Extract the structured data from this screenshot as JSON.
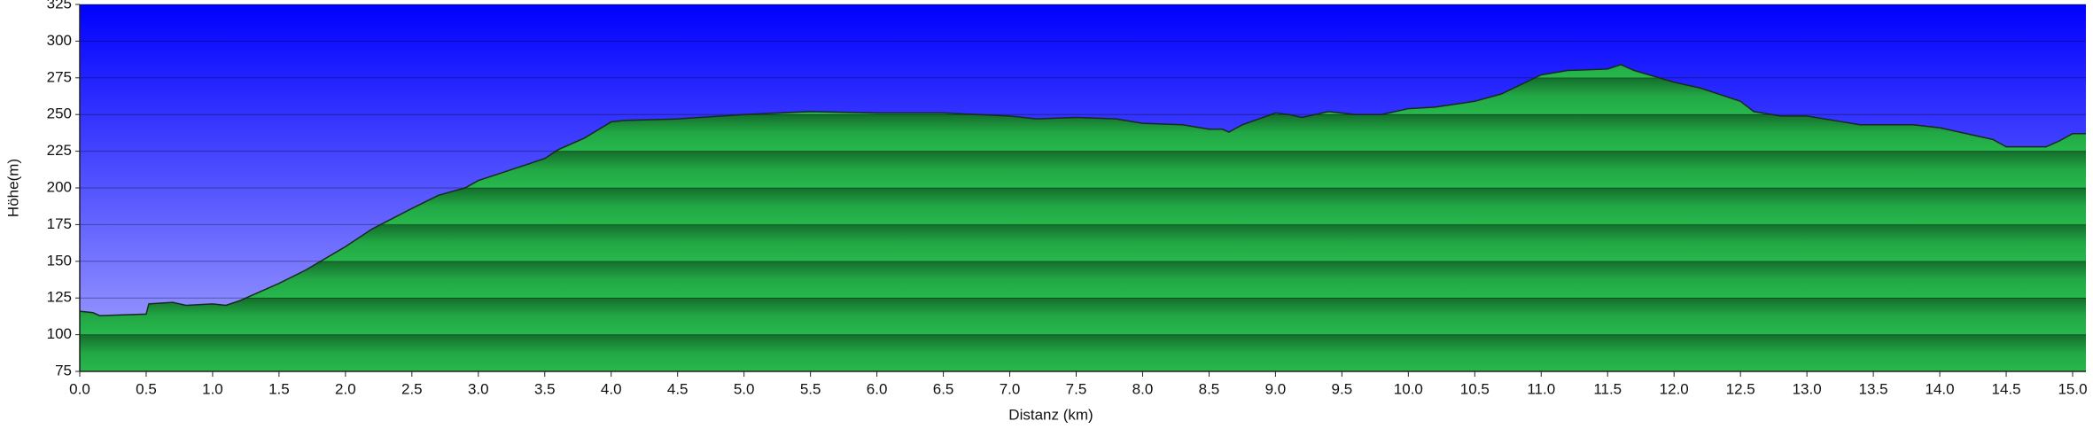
{
  "chart_data": {
    "type": "area",
    "x_label": "Distanz   (km)",
    "y_label": "Höhe(m)",
    "color": "#22a845",
    "line_color": "#1a2a1a",
    "grid": true,
    "xlim": [
      0,
      15.1
    ],
    "ylim": [
      75,
      325
    ],
    "xticks": [
      {
        "value": 0,
        "label": "0.0"
      },
      0.5,
      {
        "value": 1,
        "label": "1.0"
      },
      1.5,
      {
        "value": 2,
        "label": "2.0"
      },
      2.5,
      {
        "value": 3,
        "label": "3.0"
      },
      3.5,
      {
        "value": 4,
        "label": "4.0"
      },
      4.5,
      {
        "value": 5,
        "label": "5.0"
      },
      5.5,
      {
        "value": 6,
        "label": "6.0"
      },
      6.5,
      {
        "value": 7,
        "label": "7.0"
      },
      7.5,
      {
        "value": 8,
        "label": "8.0"
      },
      8.5,
      {
        "value": 9,
        "label": "9.0"
      },
      9.5,
      {
        "value": 10,
        "label": "10.0"
      },
      10.5,
      {
        "value": 11,
        "label": "11.0"
      },
      11.5,
      {
        "value": 12,
        "label": "12.0"
      },
      12.5,
      {
        "value": 13,
        "label": "13.0"
      },
      13.5,
      {
        "value": 14,
        "label": "14.0"
      },
      14.5,
      {
        "value": 15,
        "label": "15.0"
      }
    ],
    "yticks": [
      75,
      100,
      125,
      150,
      175,
      200,
      225,
      250,
      275,
      300,
      325
    ],
    "x": [
      0,
      0.1,
      0.15,
      0.5,
      0.52,
      0.7,
      0.8,
      1.0,
      1.1,
      1.2,
      1.5,
      1.7,
      2.0,
      2.2,
      2.5,
      2.7,
      2.9,
      3.0,
      3.2,
      3.5,
      3.6,
      3.8,
      4.0,
      4.1,
      4.5,
      5.0,
      5.5,
      6.0,
      6.5,
      7.0,
      7.2,
      7.5,
      7.8,
      8.0,
      8.3,
      8.5,
      8.6,
      8.65,
      8.75,
      9.0,
      9.1,
      9.2,
      9.4,
      9.6,
      9.8,
      10.0,
      10.2,
      10.5,
      10.7,
      11.0,
      11.2,
      11.5,
      11.6,
      11.7,
      12.0,
      12.2,
      12.5,
      12.6,
      12.8,
      13.0,
      13.2,
      13.4,
      13.6,
      13.8,
      14.0,
      14.2,
      14.4,
      14.5,
      14.8,
      14.9,
      15.0,
      15.1
    ],
    "values": [
      116,
      115,
      113,
      114,
      121,
      122,
      120,
      121,
      120,
      123,
      135,
      144,
      160,
      172,
      186,
      195,
      200,
      205,
      211,
      220,
      226,
      234,
      245,
      246,
      247,
      250,
      252,
      251,
      251,
      249,
      247,
      248,
      247,
      244,
      243,
      240,
      240,
      238,
      243,
      251,
      250,
      248,
      252,
      250,
      250,
      254,
      255,
      259,
      264,
      277,
      280,
      281,
      284,
      280,
      272,
      268,
      259,
      252,
      249,
      249,
      246,
      243,
      243,
      243,
      241,
      237,
      233,
      228,
      228,
      232,
      237,
      237
    ]
  }
}
